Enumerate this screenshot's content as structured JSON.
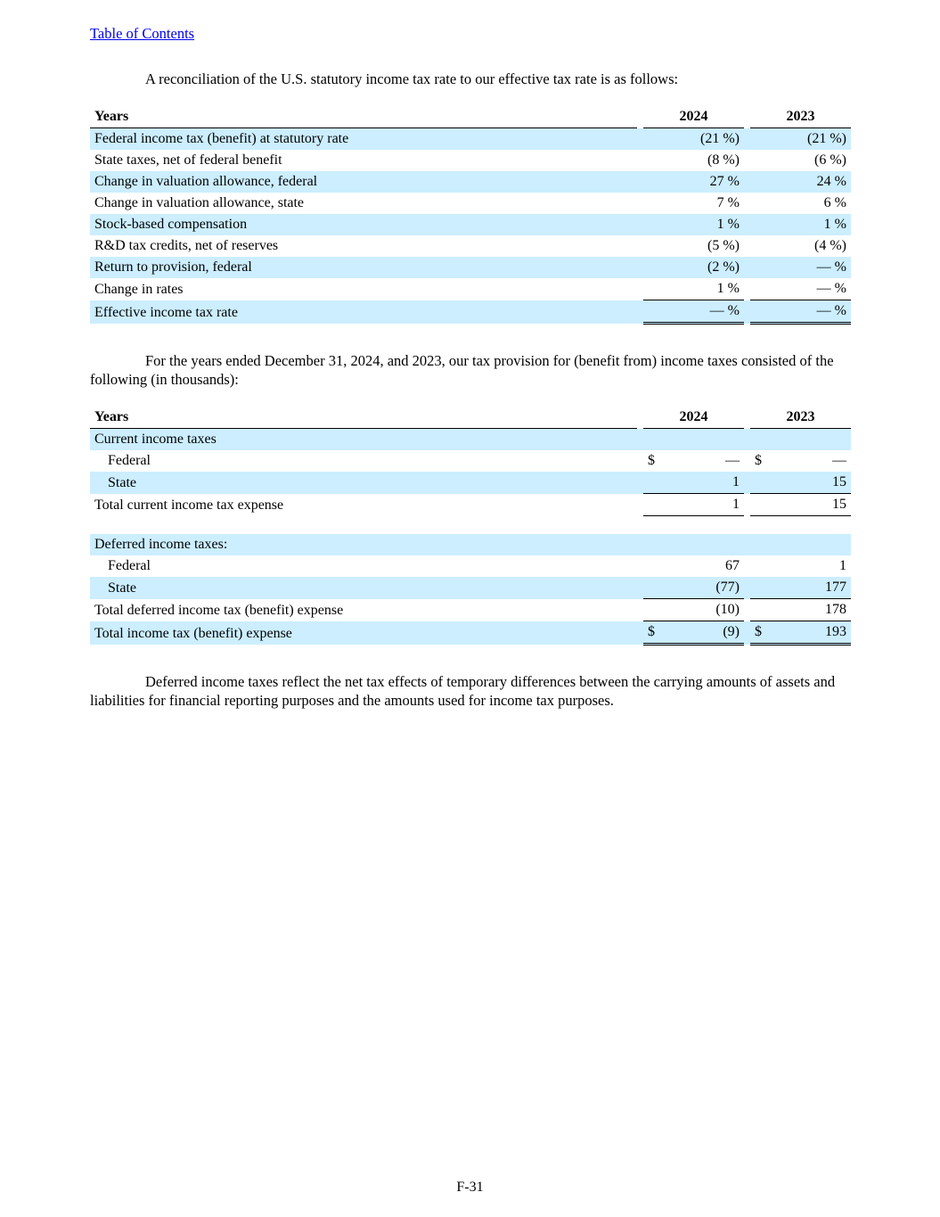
{
  "page": {
    "toc_link": "Table of Contents",
    "para1": "A reconciliation of the U.S. statutory income tax rate to our effective tax rate is as follows:",
    "para2": "For the years ended December 31, 2024, and 2023, our tax provision for (benefit from) income taxes consisted of the following (in thousands):",
    "para3": "Deferred income taxes reflect the net tax effects of temporary differences between the carrying amounts of assets and liabilities for financial reporting purposes and the amounts used for income tax purposes.",
    "footer": "F-31"
  },
  "colors": {
    "row_highlight": "#cceeff",
    "link": "#0000ee"
  },
  "table1": {
    "header": {
      "label": "Years",
      "col1": "2024",
      "col2": "2023"
    },
    "rows": [
      {
        "label": "Federal income tax (benefit) at statutory rate",
        "v2024": "(21 %)",
        "v2023": "(21 %)"
      },
      {
        "label": "State taxes, net of federal benefit",
        "v2024": "(8 %)",
        "v2023": "(6 %)"
      },
      {
        "label": "Change in valuation allowance, federal",
        "v2024": "27 %",
        "v2023": "24 %"
      },
      {
        "label": "Change in valuation allowance, state",
        "v2024": "7 %",
        "v2023": "6 %"
      },
      {
        "label": "Stock-based compensation",
        "v2024": "1 %",
        "v2023": "1 %"
      },
      {
        "label": "R&D tax credits, net of reserves",
        "v2024": "(5 %)",
        "v2023": "(4 %)"
      },
      {
        "label": "Return to provision, federal",
        "v2024": "(2 %)",
        "v2023": "— %"
      },
      {
        "label": "Change in rates",
        "v2024": "1 %",
        "v2023": "— %"
      },
      {
        "label": "Effective income tax rate",
        "v2024": "— %",
        "v2023": "— %"
      }
    ]
  },
  "table2": {
    "header": {
      "label": "Years",
      "col1": "2024",
      "col2": "2023"
    },
    "section1": "Current income taxes",
    "row_fed1": {
      "label": "Federal",
      "dollar": "$",
      "v2024": "—",
      "v2023": "—"
    },
    "row_state1": {
      "label": "State",
      "v2024": "1",
      "v2023": "15"
    },
    "total1": {
      "label": "Total current income tax expense",
      "v2024": "1",
      "v2023": "15"
    },
    "section2": "Deferred income taxes:",
    "row_fed2": {
      "label": "Federal",
      "v2024": "67",
      "v2023": "1"
    },
    "row_state2": {
      "label": "State",
      "v2024": "(77)",
      "v2023": "177"
    },
    "total2": {
      "label": "Total deferred income tax (benefit) expense",
      "v2024": "(10)",
      "v2023": "178"
    },
    "grand_total": {
      "label": "Total income tax (benefit) expense",
      "dollar": "$",
      "v2024": "(9)",
      "v2023": "193"
    }
  }
}
